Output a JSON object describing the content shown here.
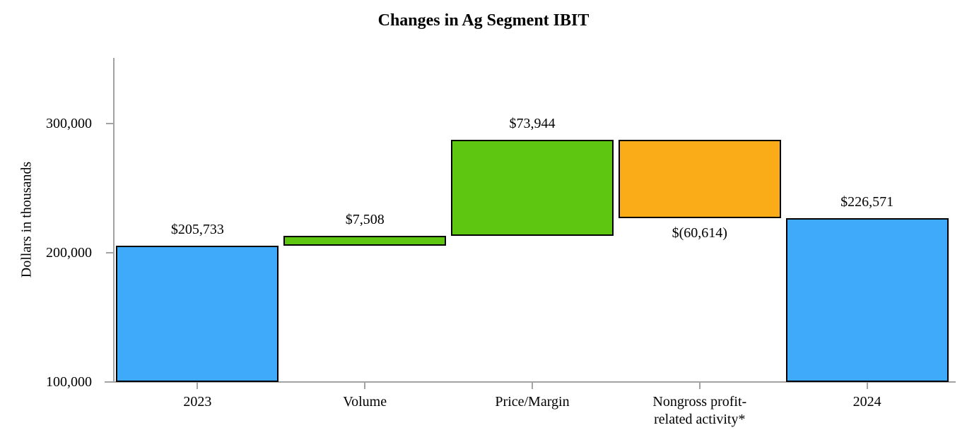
{
  "chart_data": {
    "type": "waterfall",
    "title": "Changes in Ag Segment IBIT",
    "ylabel": "Dollars in thousands",
    "xlabel": "",
    "ylim": [
      100000,
      355000
    ],
    "y_ticks": [
      100000,
      200000,
      300000
    ],
    "y_tick_labels": [
      "100,000",
      "200,000",
      "300,000"
    ],
    "grid": false,
    "legend": false,
    "categories": [
      "2023",
      "Volume",
      "Price/Margin",
      "Nongross profit-\nrelated activity*",
      "2024"
    ],
    "bars": [
      {
        "category": "2023",
        "value": 205733,
        "label": "$205,733",
        "start": 100000,
        "end": 205733,
        "color": "#3FA9FA",
        "role": "total",
        "label_position": "above"
      },
      {
        "category": "Volume",
        "value": 7508,
        "label": "$7,508",
        "start": 205733,
        "end": 213241,
        "color": "#5EC611",
        "role": "increase",
        "label_position": "above"
      },
      {
        "category": "Price/Margin",
        "value": 73944,
        "label": "$73,944",
        "start": 213241,
        "end": 287185,
        "color": "#5EC611",
        "role": "increase",
        "label_position": "above"
      },
      {
        "category": "Nongross profit-\nrelated activity*",
        "value": -60614,
        "label": "$(60,614)",
        "start": 287185,
        "end": 226571,
        "color": "#F9AC18",
        "role": "decrease",
        "label_position": "below"
      },
      {
        "category": "2024",
        "value": 226571,
        "label": "$226,571",
        "start": 100000,
        "end": 226571,
        "color": "#3FA9FA",
        "role": "total",
        "label_position": "above"
      }
    ],
    "colors": {
      "total_bar": "#3FA9FA",
      "increase_bar": "#5EC611",
      "decrease_bar": "#F9AC18",
      "bar_border": "#000000",
      "axis": "#A3A3A3",
      "text": "#000000"
    }
  }
}
